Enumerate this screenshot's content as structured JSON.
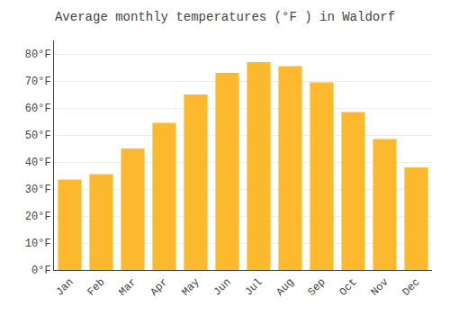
{
  "chart_data": {
    "type": "bar",
    "title": "Average monthly temperatures (°F ) in Waldorf",
    "categories": [
      "Jan",
      "Feb",
      "Mar",
      "Apr",
      "May",
      "Jun",
      "Jul",
      "Aug",
      "Sep",
      "Oct",
      "Nov",
      "Dec"
    ],
    "values": [
      33.5,
      35.5,
      45.0,
      54.5,
      65.0,
      73.0,
      77.0,
      75.5,
      69.5,
      58.5,
      48.5,
      38.0
    ],
    "color": "#FDB92E",
    "ylim": [
      0,
      85
    ],
    "yticks": [
      {
        "value": 0,
        "label": "0°F"
      },
      {
        "value": 10,
        "label": "10°F"
      },
      {
        "value": 20,
        "label": "20°F"
      },
      {
        "value": 30,
        "label": "30°F"
      },
      {
        "value": 40,
        "label": "40°F"
      },
      {
        "value": 50,
        "label": "50°F"
      },
      {
        "value": 60,
        "label": "60°F"
      },
      {
        "value": 70,
        "label": "70°F"
      },
      {
        "value": 80,
        "label": "80°F"
      }
    ],
    "grid": true
  }
}
